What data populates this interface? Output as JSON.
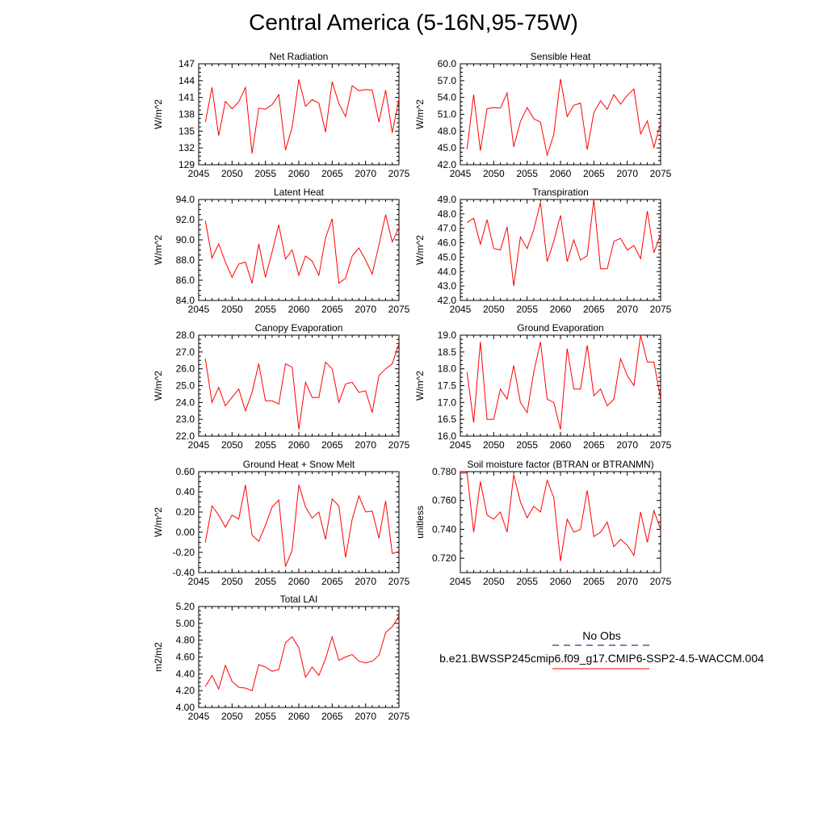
{
  "title": "Central America (5-16N,95-75W)",
  "colors": {
    "model_line": "#ff0000",
    "obs_line": "#000080",
    "axis": "#000000"
  },
  "legend": {
    "obs_label": "No Obs",
    "model_label": "b.e21.BWSSP245cmip6.f09_g17.CMIP6-SSP2-4.5-WACCM.004"
  },
  "chart_data": [
    {
      "type": "line",
      "title": "Net Radiation",
      "ylabel": "W/m^2",
      "xlim": [
        2045,
        2075
      ],
      "ylim": [
        129,
        147
      ],
      "xticks": [
        "2045",
        "2050",
        "2055",
        "2060",
        "2065",
        "2070",
        "2075"
      ],
      "yticks": [
        "129",
        "132",
        "135",
        "138",
        "141",
        "144",
        "147"
      ],
      "x": [
        2046,
        2047,
        2048,
        2049,
        2050,
        2051,
        2052,
        2053,
        2054,
        2055,
        2056,
        2057,
        2058,
        2059,
        2060,
        2061,
        2062,
        2063,
        2064,
        2065,
        2066,
        2067,
        2068,
        2069,
        2070,
        2071,
        2072,
        2073,
        2074,
        2075
      ],
      "y": [
        136.6,
        142.8,
        134.2,
        140.3,
        139.0,
        140.2,
        142.8,
        131.0,
        139.1,
        138.9,
        139.7,
        141.5,
        131.6,
        135.7,
        144.2,
        139.4,
        140.6,
        140.0,
        134.8,
        143.8,
        139.9,
        137.6,
        143.1,
        142.2,
        142.4,
        142.3,
        136.6,
        142.3,
        134.7,
        140.7
      ],
      "series": [
        {
          "name": "b.e21.BWSSP245cmip6.f09_g17.CMIP6-SSP2-4.5-WACCM.004"
        }
      ]
    },
    {
      "type": "line",
      "title": "Sensible Heat",
      "ylabel": "W/m^2",
      "xlim": [
        2045,
        2075
      ],
      "ylim": [
        42.0,
        60.0
      ],
      "xticks": [
        "2045",
        "2050",
        "2055",
        "2060",
        "2065",
        "2070",
        "2075"
      ],
      "yticks": [
        "42.0",
        "45.0",
        "48.0",
        "51.0",
        "54.0",
        "57.0",
        "60.0"
      ],
      "x": [
        2046,
        2047,
        2048,
        2049,
        2050,
        2051,
        2052,
        2053,
        2054,
        2055,
        2056,
        2057,
        2058,
        2059,
        2060,
        2061,
        2062,
        2063,
        2064,
        2065,
        2066,
        2067,
        2068,
        2069,
        2070,
        2071,
        2072,
        2073,
        2074,
        2075
      ],
      "y": [
        44.8,
        54.5,
        44.5,
        52.0,
        52.2,
        52.1,
        54.8,
        45.2,
        49.7,
        52.2,
        50.2,
        49.6,
        43.7,
        47.4,
        57.3,
        50.6,
        52.6,
        53.0,
        44.7,
        51.3,
        53.4,
        51.9,
        54.5,
        52.8,
        54.4,
        55.5,
        47.5,
        49.8,
        45.1,
        49.4
      ],
      "series": [
        {
          "name": "b.e21.BWSSP245cmip6.f09_g17.CMIP6-SSP2-4.5-WACCM.004"
        }
      ]
    },
    {
      "type": "line",
      "title": "Latent Heat",
      "ylabel": "W/m^2",
      "xlim": [
        2045,
        2075
      ],
      "ylim": [
        84.0,
        94.0
      ],
      "xticks": [
        "2045",
        "2050",
        "2055",
        "2060",
        "2065",
        "2070",
        "2075"
      ],
      "yticks": [
        "84.0",
        "86.0",
        "88.0",
        "90.0",
        "92.0",
        "94.0"
      ],
      "x": [
        2046,
        2047,
        2048,
        2049,
        2050,
        2051,
        2052,
        2053,
        2054,
        2055,
        2056,
        2057,
        2058,
        2059,
        2060,
        2061,
        2062,
        2063,
        2064,
        2065,
        2066,
        2067,
        2068,
        2069,
        2070,
        2071,
        2072,
        2073,
        2074,
        2075
      ],
      "y": [
        91.9,
        88.2,
        89.6,
        87.8,
        86.3,
        87.6,
        87.8,
        85.7,
        89.6,
        86.3,
        88.8,
        91.5,
        88.1,
        89.0,
        86.5,
        88.4,
        87.9,
        86.5,
        90.2,
        92.1,
        85.7,
        86.2,
        88.4,
        89.2,
        88.0,
        86.6,
        89.5,
        92.5,
        89.8,
        91.2
      ],
      "series": [
        {
          "name": "b.e21.BWSSP245cmip6.f09_g17.CMIP6-SSP2-4.5-WACCM.004"
        }
      ]
    },
    {
      "type": "line",
      "title": "Transpiration",
      "ylabel": "W/m^2",
      "xlim": [
        2045,
        2075
      ],
      "ylim": [
        42.0,
        49.0
      ],
      "xticks": [
        "2045",
        "2050",
        "2055",
        "2060",
        "2065",
        "2070",
        "2075"
      ],
      "yticks": [
        "42.0",
        "43.0",
        "44.0",
        "45.0",
        "46.0",
        "47.0",
        "48.0",
        "49.0"
      ],
      "x": [
        2046,
        2047,
        2048,
        2049,
        2050,
        2051,
        2052,
        2053,
        2054,
        2055,
        2056,
        2057,
        2058,
        2059,
        2060,
        2061,
        2062,
        2063,
        2064,
        2065,
        2066,
        2067,
        2068,
        2069,
        2070,
        2071,
        2072,
        2073,
        2074,
        2075
      ],
      "y": [
        47.4,
        47.7,
        45.9,
        47.6,
        45.6,
        45.5,
        47.1,
        43.0,
        46.4,
        45.6,
        46.9,
        48.8,
        44.7,
        46.1,
        47.9,
        44.7,
        46.2,
        44.8,
        45.1,
        49.0,
        44.2,
        44.2,
        46.1,
        46.3,
        45.5,
        45.8,
        44.9,
        48.2,
        45.3,
        46.6
      ],
      "series": [
        {
          "name": "b.e21.BWSSP245cmip6.f09_g17.CMIP6-SSP2-4.5-WACCM.004"
        }
      ]
    },
    {
      "type": "line",
      "title": "Canopy Evaporation",
      "ylabel": "W/m^2",
      "xlim": [
        2045,
        2075
      ],
      "ylim": [
        22.0,
        28.0
      ],
      "xticks": [
        "2045",
        "2050",
        "2055",
        "2060",
        "2065",
        "2070",
        "2075"
      ],
      "yticks": [
        "22.0",
        "23.0",
        "24.0",
        "25.0",
        "26.0",
        "27.0",
        "28.0"
      ],
      "x": [
        2046,
        2047,
        2048,
        2049,
        2050,
        2051,
        2052,
        2053,
        2054,
        2055,
        2056,
        2057,
        2058,
        2059,
        2060,
        2061,
        2062,
        2063,
        2064,
        2065,
        2066,
        2067,
        2068,
        2069,
        2070,
        2071,
        2072,
        2073,
        2074,
        2075
      ],
      "y": [
        26.6,
        24.0,
        24.9,
        23.8,
        24.3,
        24.8,
        23.5,
        24.6,
        26.3,
        24.1,
        24.1,
        23.9,
        26.3,
        26.1,
        22.4,
        25.2,
        24.3,
        24.3,
        26.4,
        26.0,
        24.0,
        25.1,
        25.2,
        24.6,
        24.7,
        23.4,
        25.6,
        26.0,
        26.3,
        27.5
      ],
      "series": [
        {
          "name": "b.e21.BWSSP245cmip6.f09_g17.CMIP6-SSP2-4.5-WACCM.004"
        }
      ]
    },
    {
      "type": "line",
      "title": "Ground Evaporation",
      "ylabel": "W/m^2",
      "xlim": [
        2045,
        2075
      ],
      "ylim": [
        16.0,
        19.0
      ],
      "xticks": [
        "2045",
        "2050",
        "2055",
        "2060",
        "2065",
        "2070",
        "2075"
      ],
      "yticks": [
        "16.0",
        "16.5",
        "17.0",
        "17.5",
        "18.0",
        "18.5",
        "19.0"
      ],
      "x": [
        2046,
        2047,
        2048,
        2049,
        2050,
        2051,
        2052,
        2053,
        2054,
        2055,
        2056,
        2057,
        2058,
        2059,
        2060,
        2061,
        2062,
        2063,
        2064,
        2065,
        2066,
        2067,
        2068,
        2069,
        2070,
        2071,
        2072,
        2073,
        2074,
        2075
      ],
      "y": [
        17.9,
        16.4,
        18.8,
        16.5,
        16.5,
        17.4,
        17.1,
        18.1,
        17.0,
        16.7,
        17.9,
        18.8,
        17.1,
        17.0,
        16.2,
        18.6,
        17.4,
        17.4,
        18.7,
        17.2,
        17.4,
        16.9,
        17.1,
        18.3,
        17.8,
        17.5,
        19.0,
        18.2,
        18.2,
        17.1
      ],
      "series": [
        {
          "name": "b.e21.BWSSP245cmip6.f09_g17.CMIP6-SSP2-4.5-WACCM.004"
        }
      ]
    },
    {
      "type": "line",
      "title": "Ground Heat + Snow Melt",
      "ylabel": "W/m^2",
      "xlim": [
        2045,
        2075
      ],
      "ylim": [
        -0.4,
        0.6
      ],
      "xticks": [
        "2045",
        "2050",
        "2055",
        "2060",
        "2065",
        "2070",
        "2075"
      ],
      "yticks": [
        "-0.40",
        "-0.20",
        "0.00",
        "0.20",
        "0.40",
        "0.60"
      ],
      "x": [
        2046,
        2047,
        2048,
        2049,
        2050,
        2051,
        2052,
        2053,
        2054,
        2055,
        2056,
        2057,
        2058,
        2059,
        2060,
        2061,
        2062,
        2063,
        2064,
        2065,
        2066,
        2067,
        2068,
        2069,
        2070,
        2071,
        2072,
        2073,
        2074,
        2075
      ],
      "y": [
        -0.1,
        0.26,
        0.17,
        0.05,
        0.17,
        0.13,
        0.47,
        -0.03,
        -0.09,
        0.07,
        0.25,
        0.32,
        -0.34,
        -0.18,
        0.47,
        0.25,
        0.14,
        0.2,
        -0.07,
        0.33,
        0.26,
        -0.25,
        0.13,
        0.36,
        0.2,
        0.21,
        -0.06,
        0.31,
        -0.21,
        -0.19
      ],
      "series": [
        {
          "name": "b.e21.BWSSP245cmip6.f09_g17.CMIP6-SSP2-4.5-WACCM.004"
        }
      ]
    },
    {
      "type": "line",
      "title": "Soil moisture factor (BTRAN or BTRANMN)",
      "ylabel": "unitless",
      "xlim": [
        2045,
        2075
      ],
      "ylim": [
        0.71,
        0.78
      ],
      "xticks": [
        "2045",
        "2050",
        "2055",
        "2060",
        "2065",
        "2070",
        "2075"
      ],
      "yticks": [
        "0.720",
        "0.740",
        "0.760",
        "0.780"
      ],
      "x": [
        2045,
        2046,
        2047,
        2048,
        2049,
        2050,
        2051,
        2052,
        2053,
        2054,
        2055,
        2056,
        2057,
        2058,
        2059,
        2060,
        2061,
        2062,
        2063,
        2064,
        2065,
        2066,
        2067,
        2068,
        2069,
        2070,
        2071,
        2072,
        2073,
        2074,
        2075
      ],
      "y": [
        0.779,
        0.779,
        0.738,
        0.773,
        0.75,
        0.747,
        0.752,
        0.738,
        0.778,
        0.759,
        0.748,
        0.756,
        0.752,
        0.774,
        0.762,
        0.718,
        0.747,
        0.738,
        0.74,
        0.767,
        0.735,
        0.738,
        0.745,
        0.728,
        0.733,
        0.729,
        0.722,
        0.752,
        0.731,
        0.753,
        0.74
      ],
      "series": [
        {
          "name": "b.e21.BWSSP245cmip6.f09_g17.CMIP6-SSP2-4.5-WACCM.004"
        }
      ]
    },
    {
      "type": "line",
      "title": "Total LAI",
      "ylabel": "m2/m2",
      "xlim": [
        2045,
        2075
      ],
      "ylim": [
        4.0,
        5.2
      ],
      "xticks": [
        "2045",
        "2050",
        "2055",
        "2060",
        "2065",
        "2070",
        "2075"
      ],
      "yticks": [
        "4.00",
        "4.20",
        "4.40",
        "4.60",
        "4.80",
        "5.00",
        "5.20"
      ],
      "x": [
        2046,
        2047,
        2048,
        2049,
        2050,
        2051,
        2052,
        2053,
        2054,
        2055,
        2056,
        2057,
        2058,
        2059,
        2060,
        2061,
        2062,
        2063,
        2064,
        2065,
        2066,
        2067,
        2068,
        2069,
        2070,
        2071,
        2072,
        2073,
        2074,
        2075
      ],
      "y": [
        4.25,
        4.38,
        4.22,
        4.5,
        4.31,
        4.24,
        4.23,
        4.2,
        4.51,
        4.48,
        4.43,
        4.45,
        4.77,
        4.84,
        4.71,
        4.36,
        4.48,
        4.38,
        4.58,
        4.84,
        4.56,
        4.6,
        4.63,
        4.55,
        4.53,
        4.55,
        4.62,
        4.89,
        4.96,
        5.09
      ],
      "series": [
        {
          "name": "b.e21.BWSSP245cmip6.f09_g17.CMIP6-SSP2-4.5-WACCM.004"
        }
      ]
    }
  ]
}
